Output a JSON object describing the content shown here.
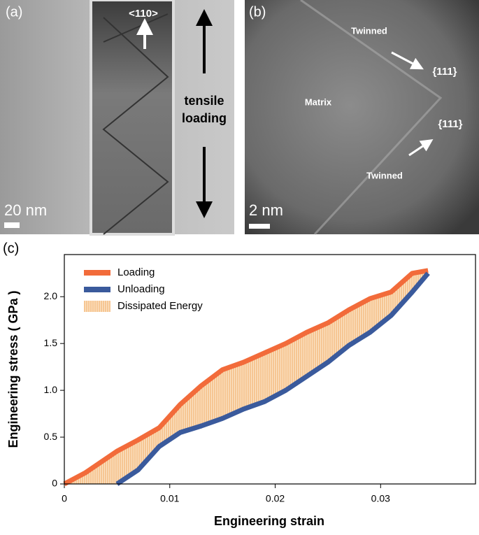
{
  "panels": {
    "a": {
      "label": "(a)",
      "direction": "<110>",
      "loading": [
        "tensile",
        "loading"
      ],
      "scale": "20 nm"
    },
    "b": {
      "label": "(b)",
      "twinned_top": "Twinned",
      "plane_top": "{111}",
      "matrix": "Matrix",
      "plane_bottom": "{111}",
      "twinned_bottom": "Twinned",
      "scale": "2 nm"
    },
    "c": {
      "label": "(c)"
    }
  },
  "chart_data": {
    "type": "line",
    "xlabel": "Engineering strain",
    "ylabel": "Engineering stress ( GPa )",
    "xlim": [
      0,
      0.039
    ],
    "xticks": [
      0,
      0.01,
      0.02,
      0.03
    ],
    "ylim": [
      0,
      2.45
    ],
    "yticks": [
      0,
      0.5,
      {
        "value": 1,
        "label": "1.0"
      },
      1.5,
      {
        "value": 2,
        "label": "2.0"
      }
    ],
    "legend": "upper left",
    "series": [
      {
        "name": "Loading",
        "color": "#f26b3a",
        "x": [
          0,
          0.002,
          0.005,
          0.007,
          0.009,
          0.011,
          0.013,
          0.015,
          0.017,
          0.019,
          0.021,
          0.023,
          0.025,
          0.027,
          0.029,
          0.031,
          0.033,
          0.0345
        ],
        "values": [
          0,
          0.12,
          0.35,
          0.47,
          0.6,
          0.85,
          1.05,
          1.22,
          1.3,
          1.4,
          1.5,
          1.62,
          1.72,
          1.86,
          1.98,
          2.05,
          2.25,
          2.28
        ]
      },
      {
        "name": "Unloading",
        "color": "#3a5a9c",
        "x": [
          0.005,
          0.007,
          0.009,
          0.011,
          0.013,
          0.015,
          0.017,
          0.019,
          0.021,
          0.023,
          0.025,
          0.027,
          0.029,
          0.031,
          0.033,
          0.0345
        ],
        "values": [
          0,
          0.15,
          0.4,
          0.55,
          0.62,
          0.7,
          0.8,
          0.88,
          1.0,
          1.15,
          1.3,
          1.48,
          1.62,
          1.8,
          2.05,
          2.25
        ]
      }
    ],
    "fill": {
      "name": "Dissipated Energy",
      "color": "#f7c58f"
    }
  }
}
